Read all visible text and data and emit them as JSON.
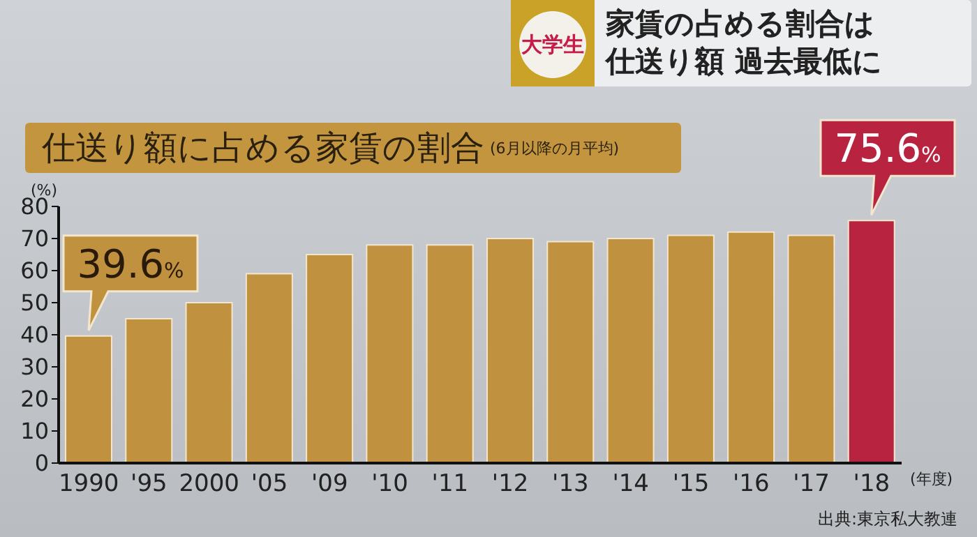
{
  "chart_data": {
    "type": "bar",
    "title": "仕送り額に占める家賃の割合",
    "subtitle": "(6月以降の月平均)",
    "ylabel": "(%)",
    "xlabel": "(年度)",
    "annotations": [
      "大学生",
      "家賃の占める割合は",
      "仕送り額 過去最低に",
      "出典:東京私大教連"
    ],
    "categories": [
      "1990",
      "'95",
      "2000",
      "'05",
      "'09",
      "'10",
      "'11",
      "'12",
      "'13",
      "'14",
      "'15",
      "'16",
      "'17",
      "'18"
    ],
    "values": [
      39.6,
      45,
      50,
      59,
      65,
      68,
      68,
      70,
      69,
      70,
      71,
      72,
      71,
      75.6
    ],
    "colors": [
      "#c0913f",
      "#c0913f",
      "#c0913f",
      "#c0913f",
      "#c0913f",
      "#c0913f",
      "#c0913f",
      "#c0913f",
      "#c0913f",
      "#c0913f",
      "#c0913f",
      "#c0913f",
      "#c0913f",
      "#b8243f"
    ],
    "value_labels": [
      "39.6%",
      null,
      null,
      null,
      null,
      null,
      null,
      null,
      null,
      null,
      null,
      null,
      null,
      "75.6%"
    ],
    "ylim": [
      0,
      80
    ],
    "yticks": [
      0,
      10,
      20,
      30,
      40,
      50,
      60,
      70,
      80
    ],
    "grid": false,
    "legend": false
  }
}
